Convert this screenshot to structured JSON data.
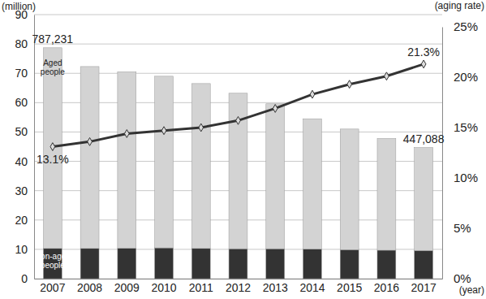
{
  "chart_data": {
    "type": "bar",
    "stacked": true,
    "grid": true,
    "categories": [
      "2007",
      "2008",
      "2009",
      "2010",
      "2011",
      "2012",
      "2013",
      "2014",
      "2015",
      "2016",
      "2017"
    ],
    "series": [
      {
        "name": "Non-aged people",
        "color": "#333333",
        "values": [
          10.3,
          10.3,
          10.4,
          10.5,
          10.3,
          10.2,
          10.2,
          10.1,
          9.9,
          9.7,
          9.6
        ]
      },
      {
        "name": "Aged people",
        "color": "#d3d3d3",
        "values": [
          68.4,
          62.0,
          60.1,
          58.5,
          56.2,
          53.0,
          49.4,
          44.4,
          41.1,
          38.1,
          35.1
        ]
      },
      {
        "type": "line",
        "axis": "y2",
        "color": "#333333",
        "marker": "diamond",
        "values": [
          13.1,
          13.6,
          14.4,
          14.7,
          15.0,
          15.7,
          16.9,
          18.3,
          19.3,
          20.1,
          21.3
        ]
      }
    ],
    "ylim": [
      0,
      90
    ],
    "yticks": [
      0,
      10,
      20,
      30,
      40,
      50,
      60,
      70,
      80,
      90
    ],
    "y2lim": [
      0,
      25
    ],
    "y2ticks": [
      {
        "value": 0,
        "label": "0%"
      },
      {
        "value": 5,
        "label": "5%"
      },
      {
        "value": 10,
        "label": "10%"
      },
      {
        "value": 15,
        "label": "15%"
      },
      {
        "value": 20,
        "label": "20%"
      },
      {
        "value": 25,
        "label": "25%"
      }
    ],
    "y_label": "(million)",
    "y2_label": "(aging rate)",
    "x_label": "(year)",
    "annotations": [
      {
        "text": "787,231",
        "x": "2007"
      },
      {
        "text": "447,088",
        "x": "2017"
      },
      {
        "text": "13.1%",
        "x": "2007",
        "axis": "y2"
      },
      {
        "text": "21.3%",
        "x": "2017",
        "axis": "y2"
      }
    ]
  }
}
